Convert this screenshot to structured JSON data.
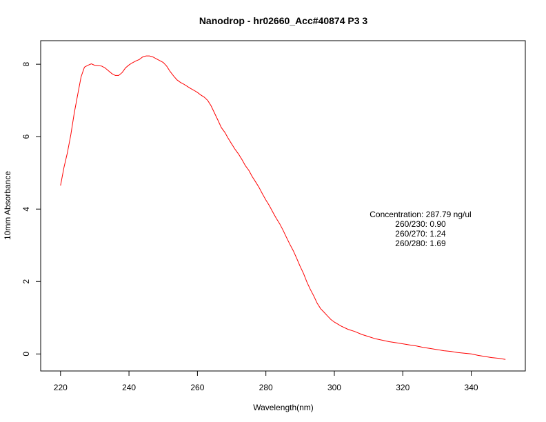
{
  "chart_data": {
    "type": "line",
    "title": "Nanodrop - hr02660_Acc#40874 P3 3",
    "xlabel": "Wavelength(nm)",
    "ylabel": "10mm Absorbance",
    "xlim": [
      214.2,
      355.8
    ],
    "ylim": [
      -0.47,
      8.65
    ],
    "xticks": [
      220,
      240,
      260,
      280,
      300,
      320,
      340
    ],
    "yticks": [
      0,
      2,
      4,
      6,
      8
    ],
    "grid": false,
    "line_color": "#ff0000",
    "series": [
      {
        "x": [
          220,
          221,
          222,
          223,
          224,
          225,
          226,
          227,
          228,
          229,
          230,
          231,
          232,
          233,
          234,
          235,
          236,
          237,
          238,
          239,
          240,
          241,
          242,
          243,
          244,
          245,
          246,
          247,
          248,
          249,
          250,
          251,
          252,
          253,
          254,
          255,
          256,
          257,
          258,
          259,
          260,
          261,
          262,
          263,
          264,
          265,
          266,
          267,
          268,
          269,
          270,
          271,
          272,
          273,
          274,
          275,
          276,
          277,
          278,
          279,
          280,
          281,
          282,
          283,
          284,
          285,
          286,
          287,
          288,
          289,
          290,
          291,
          292,
          293,
          294,
          295,
          296,
          297,
          298,
          299,
          300,
          302,
          304,
          306,
          308,
          310,
          312,
          314,
          316,
          318,
          320,
          322,
          324,
          326,
          328,
          330,
          332,
          334,
          336,
          338,
          340,
          342,
          344,
          346,
          348,
          350
        ],
        "y": [
          4.65,
          5.15,
          5.55,
          6.05,
          6.65,
          7.15,
          7.65,
          7.92,
          7.97,
          8.01,
          7.97,
          7.96,
          7.95,
          7.9,
          7.82,
          7.74,
          7.69,
          7.69,
          7.77,
          7.9,
          7.98,
          8.04,
          8.09,
          8.13,
          8.2,
          8.23,
          8.23,
          8.2,
          8.15,
          8.1,
          8.05,
          7.95,
          7.8,
          7.68,
          7.57,
          7.5,
          7.45,
          7.39,
          7.33,
          7.28,
          7.22,
          7.15,
          7.09,
          7.0,
          6.85,
          6.65,
          6.45,
          6.25,
          6.12,
          5.95,
          5.8,
          5.65,
          5.52,
          5.37,
          5.2,
          5.07,
          4.9,
          4.75,
          4.6,
          4.42,
          4.25,
          4.1,
          3.92,
          3.75,
          3.6,
          3.42,
          3.22,
          3.03,
          2.85,
          2.64,
          2.42,
          2.22,
          1.98,
          1.78,
          1.6,
          1.4,
          1.25,
          1.15,
          1.05,
          0.95,
          0.88,
          0.77,
          0.68,
          0.62,
          0.54,
          0.48,
          0.42,
          0.38,
          0.34,
          0.31,
          0.28,
          0.25,
          0.22,
          0.18,
          0.15,
          0.12,
          0.09,
          0.07,
          0.04,
          0.02,
          0.0,
          -0.04,
          -0.07,
          -0.1,
          -0.12,
          -0.15
        ]
      }
    ],
    "annotations": [
      "Concentration: 287.79 ng/ul",
      "260/230: 0.90",
      "260/270: 1.24",
      "260/280: 1.69"
    ]
  }
}
